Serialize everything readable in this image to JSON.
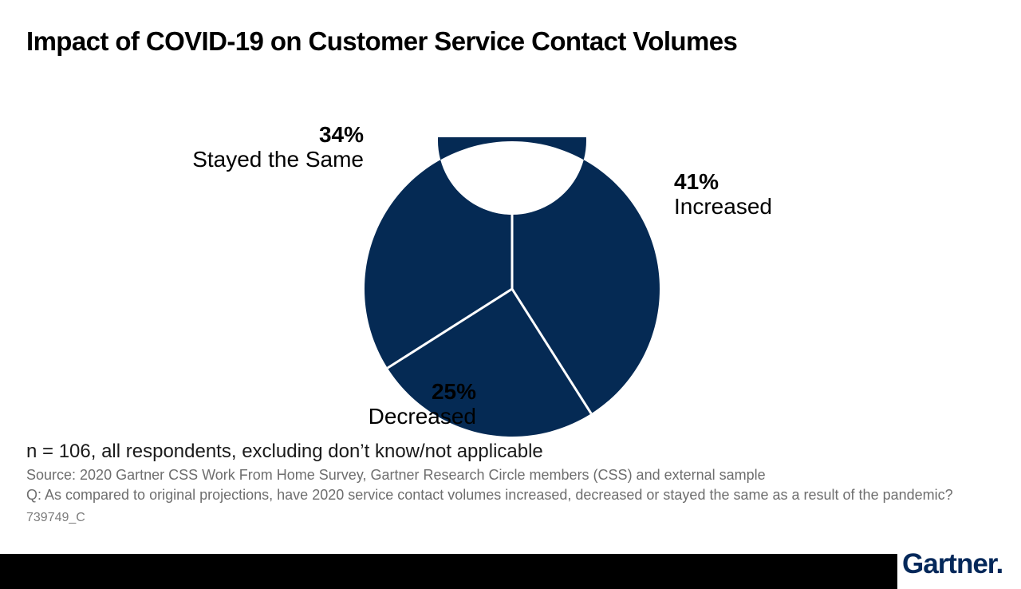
{
  "title": "Impact of COVID-19 on Customer Service Contact Volumes",
  "chart_data": {
    "type": "pie",
    "subtype": "donut",
    "title": "Impact of COVID-19 on Customer Service Contact Volumes",
    "categories": [
      "Increased",
      "Decreased",
      "Stayed the Same"
    ],
    "values": [
      41,
      25,
      34
    ],
    "unit": "percent",
    "start_angle_deg": 0,
    "direction": "clockwise",
    "ring_color": "#052a54",
    "divider_color": "#ffffff",
    "hole_color": "#ffffff",
    "legend_position": "none",
    "labels": [
      {
        "value": "41%",
        "name": "Increased"
      },
      {
        "value": "25%",
        "name": "Decreased"
      },
      {
        "value": "34%",
        "name": "Stayed the Same"
      }
    ]
  },
  "notes": {
    "sample": "n = 106, all respondents, excluding don’t know/not applicable",
    "source": "Source: 2020 Gartner CSS Work From Home Survey, Gartner Research Circle members (CSS) and external sample",
    "question": "Q: As compared to original projections, have 2020 service contact volumes increased, decreased or stayed the same as a result of the pandemic?",
    "figure_id": "739749_C"
  },
  "footer": {
    "logo_text": "Gartner.",
    "bar_color": "#000000",
    "logo_color": "#04285a"
  }
}
